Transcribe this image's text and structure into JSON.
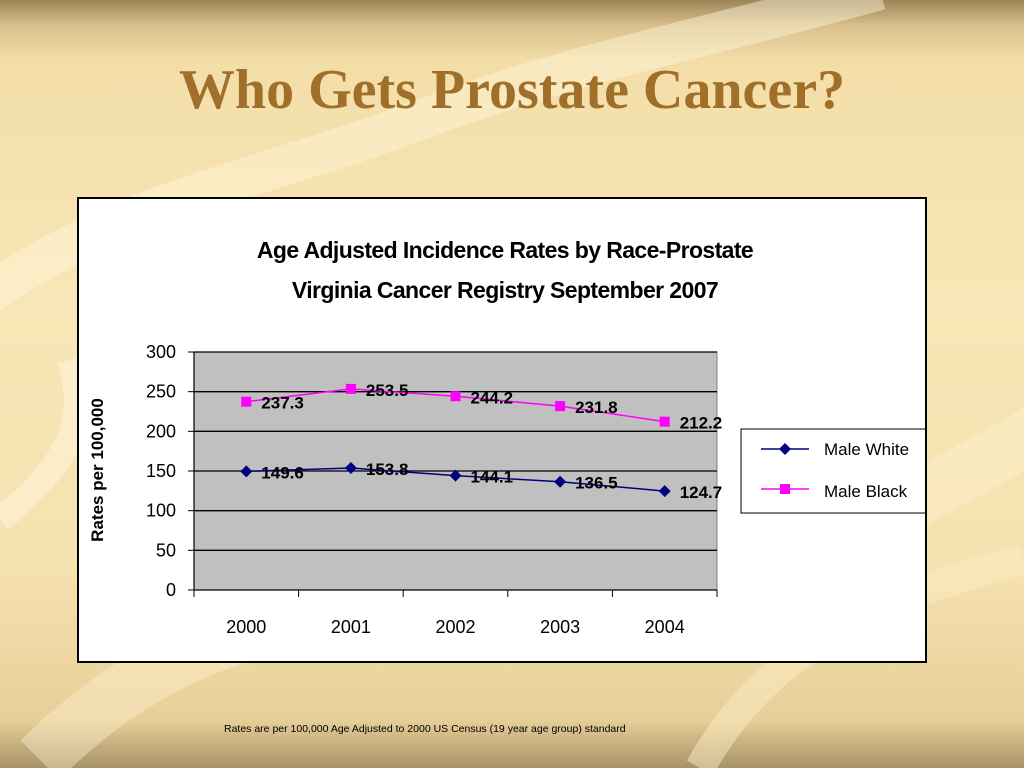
{
  "slide": {
    "title": "Who Gets Prostate Cancer?",
    "footnote": "Rates are per 100,000 Age Adjusted to 2000 US Census (19 year age group) standard"
  },
  "colors": {
    "title": "#a0702a",
    "plot_background": "#c0c0c0",
    "male_white": "#000080",
    "male_black": "#ff00ff"
  },
  "chart_data": {
    "type": "line",
    "title_lines": [
      "Age Adjusted Incidence Rates by Race-Prostate",
      "Virginia Cancer Registry September 2007"
    ],
    "xlabel": "",
    "ylabel": "Rates per 100,000",
    "categories": [
      "2000",
      "2001",
      "2002",
      "2003",
      "2004"
    ],
    "ylim": [
      0,
      300
    ],
    "yticks": [
      0,
      50,
      100,
      150,
      200,
      250,
      300
    ],
    "grid": true,
    "legend_position": "right",
    "series": [
      {
        "name": "Male White",
        "values": [
          149.6,
          153.8,
          144.1,
          136.5,
          124.7
        ],
        "labels": [
          "149.6",
          "153.8",
          "144.1",
          "136.5",
          "124.7"
        ],
        "marker": "diamond",
        "color": "#000080"
      },
      {
        "name": "Male Black",
        "values": [
          237.3,
          253.5,
          244.2,
          231.8,
          212.2
        ],
        "labels": [
          "237.3",
          "253.5",
          "244.2",
          "231.8",
          "212.2"
        ],
        "marker": "square",
        "color": "#ff00ff"
      }
    ]
  }
}
